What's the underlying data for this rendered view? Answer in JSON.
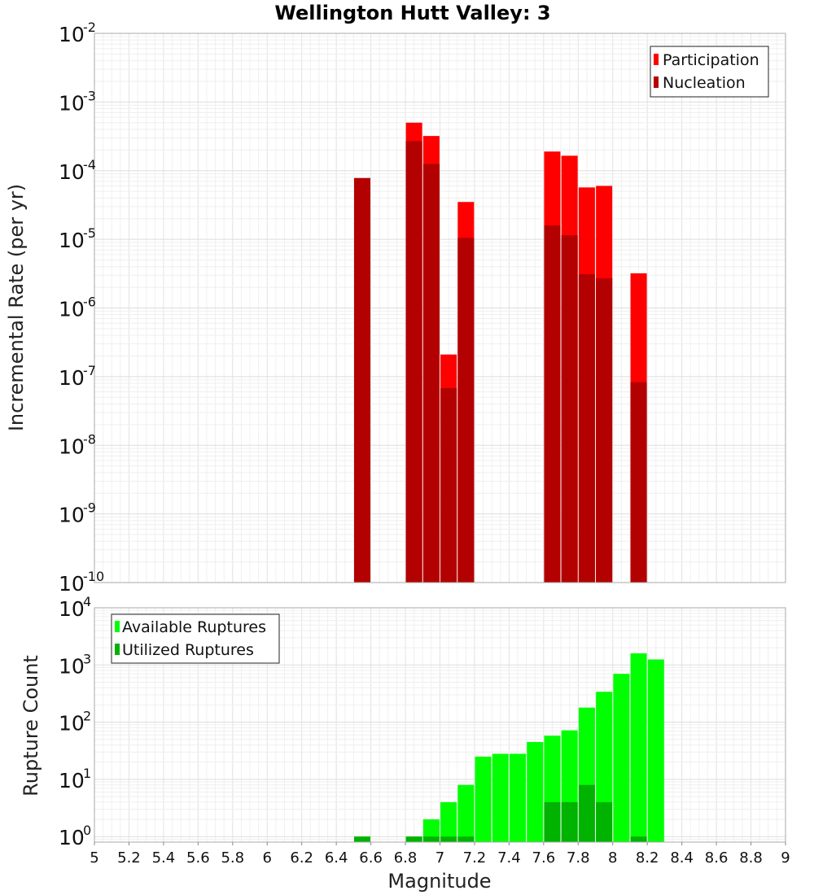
{
  "chart_data": [
    {
      "type": "bar",
      "title": "Wellington Hutt Valley: 3",
      "xlabel": "Magnitude",
      "ylabel": "Incremental Rate (per yr)",
      "yscale": "log",
      "ylim": [
        1e-10,
        0.01
      ],
      "xlim": [
        5,
        9
      ],
      "grid": true,
      "legend_position": "top-right",
      "y_ticks": [
        {
          "base": "10",
          "exp": "-10"
        },
        {
          "base": "10",
          "exp": "-9"
        },
        {
          "base": "10",
          "exp": "-8"
        },
        {
          "base": "10",
          "exp": "-7"
        },
        {
          "base": "10",
          "exp": "-6"
        },
        {
          "base": "10",
          "exp": "-5"
        },
        {
          "base": "10",
          "exp": "-4"
        },
        {
          "base": "10",
          "exp": "-3"
        },
        {
          "base": "10",
          "exp": "-2"
        }
      ],
      "series": [
        {
          "name": "Participation",
          "color": "#ff0000",
          "points": [
            {
              "x": 6.55,
              "y": 7.8e-05
            },
            {
              "x": 6.85,
              "y": 0.0005
            },
            {
              "x": 6.95,
              "y": 0.00032
            },
            {
              "x": 7.05,
              "y": 2.1e-07
            },
            {
              "x": 7.15,
              "y": 3.5e-05
            },
            {
              "x": 7.65,
              "y": 0.00019
            },
            {
              "x": 7.75,
              "y": 0.000165
            },
            {
              "x": 7.85,
              "y": 5.7e-05
            },
            {
              "x": 7.95,
              "y": 6e-05
            },
            {
              "x": 8.15,
              "y": 3.2e-06
            }
          ]
        },
        {
          "name": "Nucleation",
          "color": "#b30000",
          "points": [
            {
              "x": 6.55,
              "y": 7.8e-05
            },
            {
              "x": 6.85,
              "y": 0.00027
            },
            {
              "x": 6.95,
              "y": 0.000125
            },
            {
              "x": 7.05,
              "y": 6.8e-08
            },
            {
              "x": 7.15,
              "y": 1.05e-05
            },
            {
              "x": 7.65,
              "y": 1.6e-05
            },
            {
              "x": 7.75,
              "y": 1.15e-05
            },
            {
              "x": 7.85,
              "y": 3.1e-06
            },
            {
              "x": 7.95,
              "y": 2.7e-06
            },
            {
              "x": 8.15,
              "y": 8.3e-08
            }
          ]
        }
      ]
    },
    {
      "type": "bar",
      "xlabel": "Magnitude",
      "ylabel": "Rupture Count",
      "yscale": "log",
      "ylim": [
        0.8,
        10000
      ],
      "xlim": [
        5,
        9
      ],
      "grid": true,
      "legend_position": "top-left",
      "x_ticks": [
        "5",
        "5.2",
        "5.4",
        "5.6",
        "5.8",
        "6",
        "6.2",
        "6.4",
        "6.6",
        "6.8",
        "7",
        "7.2",
        "7.4",
        "7.6",
        "7.8",
        "8",
        "8.2",
        "8.4",
        "8.6",
        "8.8",
        "9"
      ],
      "y_ticks": [
        {
          "base": "10",
          "exp": "0"
        },
        {
          "base": "10",
          "exp": "1"
        },
        {
          "base": "10",
          "exp": "2"
        },
        {
          "base": "10",
          "exp": "3"
        },
        {
          "base": "10",
          "exp": "4"
        }
      ],
      "series": [
        {
          "name": "Available Ruptures",
          "color": "#00ff00",
          "points": [
            {
              "x": 6.55,
              "y": 1
            },
            {
              "x": 6.85,
              "y": 1
            },
            {
              "x": 6.95,
              "y": 2
            },
            {
              "x": 7.05,
              "y": 4
            },
            {
              "x": 7.15,
              "y": 8
            },
            {
              "x": 7.25,
              "y": 25
            },
            {
              "x": 7.35,
              "y": 28
            },
            {
              "x": 7.45,
              "y": 28
            },
            {
              "x": 7.55,
              "y": 45
            },
            {
              "x": 7.65,
              "y": 58
            },
            {
              "x": 7.75,
              "y": 72
            },
            {
              "x": 7.85,
              "y": 180
            },
            {
              "x": 7.95,
              "y": 340
            },
            {
              "x": 8.05,
              "y": 700
            },
            {
              "x": 8.15,
              "y": 1600
            },
            {
              "x": 8.25,
              "y": 1250
            }
          ]
        },
        {
          "name": "Utilized Ruptures",
          "color": "#00b300",
          "points": [
            {
              "x": 6.55,
              "y": 1
            },
            {
              "x": 6.85,
              "y": 1
            },
            {
              "x": 6.95,
              "y": 1
            },
            {
              "x": 7.05,
              "y": 1
            },
            {
              "x": 7.15,
              "y": 1
            },
            {
              "x": 7.65,
              "y": 4
            },
            {
              "x": 7.75,
              "y": 4
            },
            {
              "x": 7.85,
              "y": 8
            },
            {
              "x": 7.95,
              "y": 4
            },
            {
              "x": 8.15,
              "y": 1
            }
          ]
        }
      ]
    }
  ]
}
